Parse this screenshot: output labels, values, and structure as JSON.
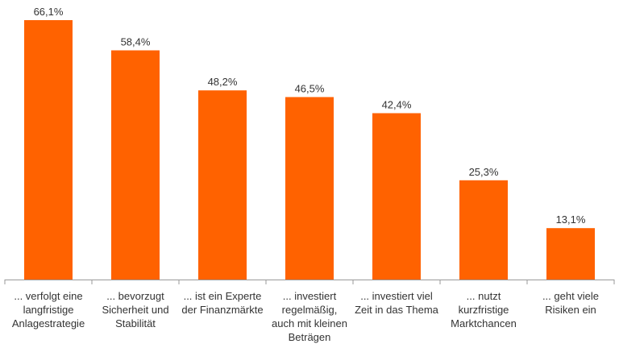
{
  "chart_data": {
    "type": "bar",
    "categories": [
      [
        "... verfolgt eine",
        "langfristige",
        "Anlagestrategie"
      ],
      [
        "... bevorzugt",
        "Sicherheit und",
        "Stabilität"
      ],
      [
        "... ist ein Experte",
        "der Finanzmärkte"
      ],
      [
        "... investiert",
        "regelmäßig,",
        "auch mit kleinen",
        "Beträgen"
      ],
      [
        "... investiert viel",
        "Zeit in das Thema"
      ],
      [
        "... nutzt",
        "kurzfristige",
        "Marktchancen"
      ],
      [
        "... geht viele",
        "Risiken ein"
      ]
    ],
    "values": [
      66.1,
      58.4,
      48.2,
      46.5,
      42.4,
      25.3,
      13.1
    ],
    "value_labels": [
      "66,1%",
      "58,4%",
      "48,2%",
      "46,5%",
      "42,4%",
      "25,3%",
      "13,1%"
    ],
    "ylim": [
      0,
      70
    ],
    "grid": false,
    "legend": "none",
    "colors": {
      "bar": "#ff6200",
      "axis": "#999999",
      "text": "#333333"
    }
  }
}
